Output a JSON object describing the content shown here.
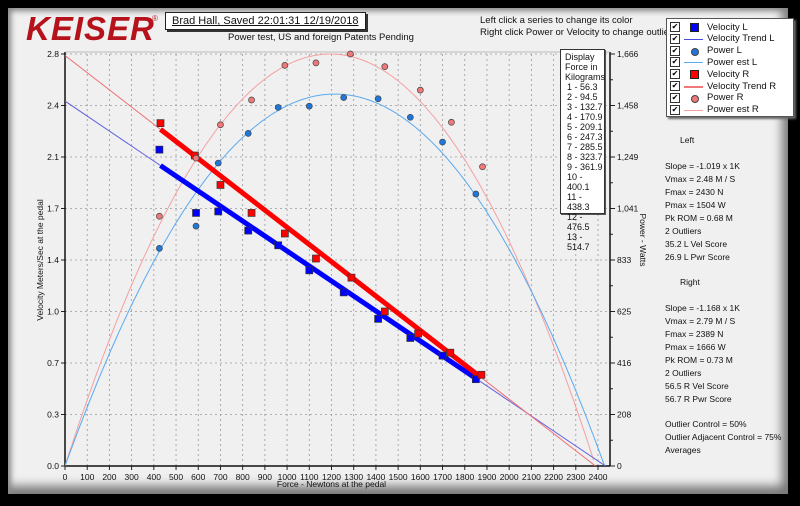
{
  "header": {
    "logo": "KEISER",
    "logo_mark": "®",
    "session": "Brad Hall, Saved  22:01:31 12/19/2018",
    "subtitle": "Power test, US and foreign Patents Pending",
    "hint_line1": "Left click a series to change its color",
    "hint_line2": "Right click Power or Velocity to change outlier options"
  },
  "legend": {
    "items": [
      {
        "label": "Velocity L",
        "checked": true,
        "symbol": "square",
        "color": "#0000ff"
      },
      {
        "label": "Velocity Trend L",
        "checked": true,
        "symbol": "line",
        "color": "#4b4bdc"
      },
      {
        "label": "Power L",
        "checked": true,
        "symbol": "circle",
        "color": "#1e78dc"
      },
      {
        "label": "Power est L",
        "checked": true,
        "symbol": "line",
        "color": "#5aaaf0"
      },
      {
        "label": "Velocity R",
        "checked": true,
        "symbol": "square",
        "color": "#ff0000"
      },
      {
        "label": "Velocity Trend R",
        "checked": true,
        "symbol": "line",
        "color": "#f07878"
      },
      {
        "label": "Power R",
        "checked": true,
        "symbol": "circle",
        "color": "#f07878"
      },
      {
        "label": "Power est R",
        "checked": true,
        "symbol": "line",
        "color": "#f5a0a0"
      }
    ]
  },
  "kg_box": {
    "title_lines": [
      "Display",
      "Force in",
      "Kilograms"
    ],
    "rows": [
      "1 - 56.3",
      "2 - 94.5",
      "3 - 132.7",
      "4 - 170.9",
      "5 - 209.1",
      "6 - 247.3",
      "7 - 285.5",
      "8 - 323.7",
      "9 - 361.9",
      "10 - 400.1",
      "11 - 438.3",
      "12 - 476.5",
      "13 - 514.7"
    ]
  },
  "stats": {
    "left": {
      "header": "Left",
      "lines": [
        "Slope = -1.019 x 1K",
        "Vmax = 2.48 M / S",
        "Fmax = 2430 N",
        "Pmax = 1504 W",
        "Pk ROM = 0.68 M",
        "2 Outliers",
        "35.2 L Vel Score",
        "26.9 L Pwr Score"
      ]
    },
    "right": {
      "header": "Right",
      "lines": [
        "Slope = -1.168 x 1K",
        "Vmax = 2.79 M / S",
        "Fmax = 2389 N",
        "Pmax = 1666 W",
        "Pk ROM = 0.73 M",
        "2 Outliers",
        "56.5 R Vel Score",
        "56.7 R Pwr Score"
      ]
    },
    "footer": [
      "Outlier Control = 50%",
      "Outlier Adjacent Control = 75%",
      "Averages"
    ]
  },
  "chart_data": {
    "type": "scatter",
    "title": "Power test, US and foreign Patents Pending",
    "xlabel": "Force - Newtons at the pedal",
    "ylabel": "Velocity Meters/Sec at the pedal",
    "y2label": "Power - Watts",
    "xlim": [
      0,
      2450
    ],
    "ylim": [
      0,
      2.8
    ],
    "y2lim": [
      0,
      1666
    ],
    "x_ticks": [
      0,
      100,
      200,
      300,
      400,
      500,
      600,
      700,
      800,
      900,
      1000,
      1100,
      1200,
      1300,
      1400,
      1500,
      1600,
      1700,
      1800,
      1900,
      2000,
      2100,
      2200,
      2300,
      2400
    ],
    "y_ticks": [
      "0.0",
      "0.3",
      "0.7",
      "1.0",
      "1.4",
      "1.7",
      "2.1",
      "2.4",
      "2.8"
    ],
    "y2_ticks": [
      "0",
      "208",
      "416",
      "625",
      "833",
      "1,041",
      "1,249",
      "1,458",
      "1,666"
    ],
    "grid": true,
    "legend_position": "top-right",
    "series": [
      {
        "name": "Velocity L",
        "kind": "scatter-square",
        "color": "#0000ff",
        "points": [
          [
            425,
            2.15
          ],
          [
            590,
            1.72
          ],
          [
            690,
            1.73
          ],
          [
            825,
            1.6
          ],
          [
            960,
            1.5
          ],
          [
            1100,
            1.33
          ],
          [
            1255,
            1.18
          ],
          [
            1410,
            1.0
          ],
          [
            1555,
            0.87
          ],
          [
            1700,
            0.75
          ],
          [
            1850,
            0.59
          ]
        ]
      },
      {
        "name": "Velocity Trend L",
        "kind": "line",
        "color": "#0000ff",
        "fit": {
          "intercept": 2.48,
          "slope_per_1000N": -1.019
        },
        "bold_range": [
          430,
          1850
        ]
      },
      {
        "name": "Power L",
        "kind": "scatter-circle",
        "color": "#1e78dc",
        "points": [
          [
            425,
            880
          ],
          [
            590,
            970
          ],
          [
            690,
            1225
          ],
          [
            825,
            1345
          ],
          [
            960,
            1450
          ],
          [
            1100,
            1455
          ],
          [
            1255,
            1490
          ],
          [
            1410,
            1485
          ],
          [
            1555,
            1410
          ],
          [
            1700,
            1310
          ],
          [
            1850,
            1100
          ]
        ]
      },
      {
        "name": "Power est L",
        "kind": "curve",
        "color": "#5aaaf0",
        "peak": 1504,
        "fmax": 2430
      },
      {
        "name": "Velocity R",
        "kind": "scatter-square",
        "color": "#ff0000",
        "points": [
          [
            430,
            2.33
          ],
          [
            585,
            2.11
          ],
          [
            700,
            1.91
          ],
          [
            840,
            1.72
          ],
          [
            990,
            1.58
          ],
          [
            1130,
            1.41
          ],
          [
            1290,
            1.28
          ],
          [
            1440,
            1.05
          ],
          [
            1590,
            0.9
          ],
          [
            1735,
            0.77
          ],
          [
            1875,
            0.62
          ]
        ]
      },
      {
        "name": "Velocity Trend R",
        "kind": "line",
        "color": "#ff0000",
        "fit": {
          "intercept": 2.79,
          "slope_per_1000N": -1.168
        },
        "bold_range": [
          430,
          1875
        ]
      },
      {
        "name": "Power R",
        "kind": "scatter-circle",
        "color": "#f07878",
        "points": [
          [
            425,
            1010
          ],
          [
            590,
            1245
          ],
          [
            700,
            1380
          ],
          [
            840,
            1480
          ],
          [
            990,
            1620
          ],
          [
            1130,
            1630
          ],
          [
            1285,
            1666
          ],
          [
            1440,
            1615
          ],
          [
            1600,
            1520
          ],
          [
            1740,
            1390
          ],
          [
            1880,
            1210
          ]
        ]
      },
      {
        "name": "Power est R",
        "kind": "curve",
        "color": "#f5a0a0",
        "peak": 1666,
        "fmax": 2389
      }
    ]
  }
}
